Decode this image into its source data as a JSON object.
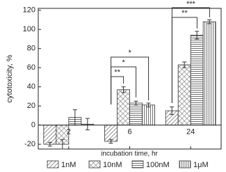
{
  "chart_data": {
    "type": "bar",
    "x_label": "incubation time, hr",
    "y_label": "cytotoxicity, %",
    "categories": [
      "2",
      "6",
      "24"
    ],
    "series": [
      {
        "name": "1nM",
        "color": "#777777",
        "hatch": "diagonal",
        "values": [
          -20,
          -17,
          15
        ],
        "errors": [
          2,
          2,
          4
        ]
      },
      {
        "name": "10nM",
        "color": "#777777",
        "hatch": "cross",
        "values": [
          -20,
          37,
          63
        ],
        "errors": [
          5,
          3,
          3
        ]
      },
      {
        "name": "100nM",
        "color": "#777777",
        "hatch": "horizontal",
        "values": [
          8,
          23,
          94
        ],
        "errors": [
          8,
          2,
          4
        ]
      },
      {
        "name": "1μM",
        "color": "#777777",
        "hatch": "vertical",
        "values": [
          1,
          21,
          108
        ],
        "errors": [
          6,
          2,
          2
        ]
      }
    ],
    "annotations": [
      "**",
      "*",
      "*",
      "**",
      "***"
    ],
    "ylim": [
      -25,
      122
    ],
    "yticks": [
      -20,
      0,
      20,
      40,
      60,
      80,
      100,
      120
    ],
    "legend": "bottom"
  }
}
